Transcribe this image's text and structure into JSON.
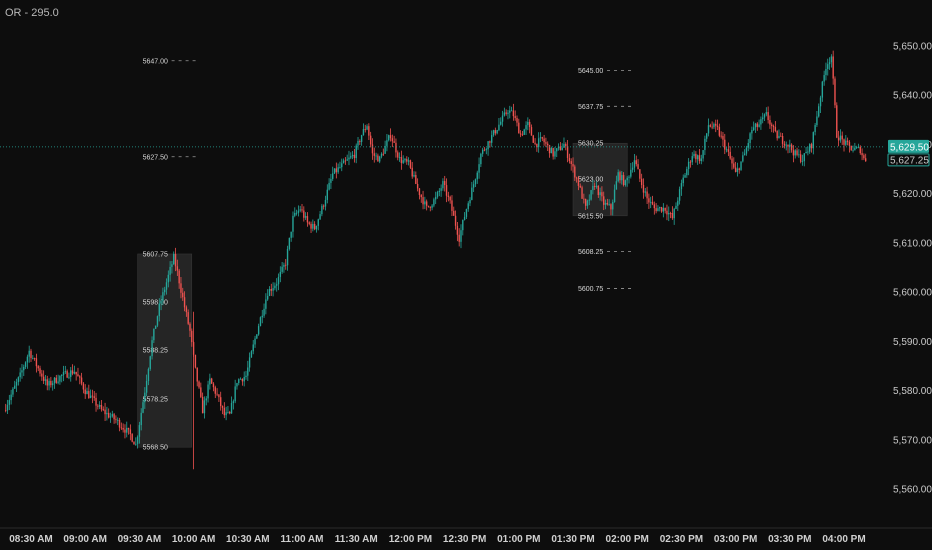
{
  "indicator": {
    "label": "OR - 295.0"
  },
  "chart_data": {
    "type": "candlestick",
    "y_axis": {
      "ylim": [
        5553,
        5657
      ],
      "ticks": [
        "5,560.00",
        "5,570.00",
        "5,580.00",
        "5,590.00",
        "5,600.00",
        "5,610.00",
        "5,620.00",
        "5,630.00",
        "5,640.00",
        "5,650.00"
      ],
      "tick_values": [
        5560,
        5570,
        5580,
        5590,
        5600,
        5610,
        5620,
        5630,
        5640,
        5650
      ]
    },
    "x_axis": {
      "ticks": [
        "08:30 AM",
        "09:00 AM",
        "09:30 AM",
        "10:00 AM",
        "10:30 AM",
        "11:00 AM",
        "11:30 AM",
        "12:00 PM",
        "12:30 PM",
        "01:00 PM",
        "01:30 PM",
        "02:00 PM",
        "02:30 PM",
        "03:00 PM",
        "03:30 PM",
        "04:00 PM"
      ],
      "tick_minutes": [
        510,
        540,
        570,
        600,
        630,
        660,
        690,
        720,
        750,
        780,
        810,
        840,
        870,
        900,
        930,
        960
      ],
      "xlim": [
        495,
        1005
      ]
    },
    "last_price": {
      "label": "5,629.50",
      "value": 5629.5,
      "color": "#26a69a"
    },
    "current_price": {
      "label": "5,627.25",
      "value": 5627.25
    },
    "opening_ranges": [
      {
        "name": "morning",
        "start": 569,
        "end": 599,
        "levels": [
          {
            "label": "5607.75",
            "value": 5607.75
          },
          {
            "label": "5598.00",
            "value": 5598.0
          },
          {
            "label": "5588.25",
            "value": 5588.25
          },
          {
            "label": "5578.25",
            "value": 5578.25
          },
          {
            "label": "5568.50",
            "value": 5568.5
          }
        ],
        "ext_levels": [
          {
            "label": "5647.00",
            "value": 5647.0
          },
          {
            "label": "5627.50",
            "value": 5627.5
          }
        ]
      },
      {
        "name": "afternoon",
        "start": 810,
        "end": 840,
        "levels": [
          {
            "label": "5630.25",
            "value": 5630.25
          },
          {
            "label": "5623.00",
            "value": 5623.0
          },
          {
            "label": "5615.50",
            "value": 5615.5
          }
        ],
        "ext_levels": [
          {
            "label": "5645.00",
            "value": 5645.0
          },
          {
            "label": "5637.75",
            "value": 5637.75
          },
          {
            "label": "5608.25",
            "value": 5608.25
          },
          {
            "label": "5600.75",
            "value": 5600.75
          }
        ]
      }
    ],
    "waypoints": [
      [
        496,
        5576
      ],
      [
        505,
        5583
      ],
      [
        510,
        5588
      ],
      [
        520,
        5581
      ],
      [
        528,
        5583
      ],
      [
        535,
        5584
      ],
      [
        541,
        5580
      ],
      [
        550,
        5576
      ],
      [
        558,
        5574
      ],
      [
        566,
        5571
      ],
      [
        569,
        5569
      ],
      [
        574,
        5580
      ],
      [
        578,
        5590
      ],
      [
        582,
        5597
      ],
      [
        586,
        5602
      ],
      [
        590,
        5607
      ],
      [
        592,
        5604
      ],
      [
        596,
        5597
      ],
      [
        599,
        5592
      ],
      [
        602,
        5584
      ],
      [
        606,
        5576
      ],
      [
        610,
        5582
      ],
      [
        614,
        5579
      ],
      [
        618,
        5575
      ],
      [
        621,
        5575
      ],
      [
        625,
        5582
      ],
      [
        630,
        5583
      ],
      [
        636,
        5592
      ],
      [
        642,
        5600
      ],
      [
        647,
        5602
      ],
      [
        652,
        5606
      ],
      [
        656,
        5615
      ],
      [
        660,
        5617
      ],
      [
        664,
        5614
      ],
      [
        668,
        5613
      ],
      [
        673,
        5618
      ],
      [
        678,
        5624
      ],
      [
        684,
        5626
      ],
      [
        690,
        5628
      ],
      [
        694,
        5632
      ],
      [
        697,
        5634
      ],
      [
        700,
        5628
      ],
      [
        704,
        5627
      ],
      [
        710,
        5632
      ],
      [
        715,
        5627
      ],
      [
        720,
        5626
      ],
      [
        725,
        5621
      ],
      [
        730,
        5617
      ],
      [
        735,
        5619
      ],
      [
        739,
        5622
      ],
      [
        743,
        5618
      ],
      [
        748,
        5611
      ],
      [
        752,
        5617
      ],
      [
        756,
        5622
      ],
      [
        760,
        5628
      ],
      [
        765,
        5631
      ],
      [
        770,
        5634
      ],
      [
        775,
        5637
      ],
      [
        778,
        5636
      ],
      [
        782,
        5632
      ],
      [
        786,
        5634
      ],
      [
        790,
        5630
      ],
      [
        794,
        5631
      ],
      [
        800,
        5628
      ],
      [
        806,
        5630
      ],
      [
        810,
        5626
      ],
      [
        814,
        5622
      ],
      [
        818,
        5617
      ],
      [
        823,
        5622
      ],
      [
        828,
        5618
      ],
      [
        832,
        5617
      ],
      [
        836,
        5624
      ],
      [
        840,
        5622
      ],
      [
        845,
        5627
      ],
      [
        848,
        5623
      ],
      [
        852,
        5619
      ],
      [
        856,
        5617
      ],
      [
        862,
        5617
      ],
      [
        866,
        5615
      ],
      [
        872,
        5623
      ],
      [
        877,
        5628
      ],
      [
        882,
        5627
      ],
      [
        886,
        5634
      ],
      [
        891,
        5633
      ],
      [
        897,
        5628
      ],
      [
        901,
        5624
      ],
      [
        906,
        5628
      ],
      [
        910,
        5633
      ],
      [
        914,
        5634
      ],
      [
        918,
        5636
      ],
      [
        923,
        5632
      ],
      [
        930,
        5630
      ],
      [
        934,
        5628
      ],
      [
        938,
        5627
      ],
      [
        943,
        5630
      ],
      [
        947,
        5638
      ],
      [
        951,
        5646
      ],
      [
        954,
        5648
      ],
      [
        957,
        5632
      ],
      [
        962,
        5630
      ],
      [
        966,
        5629
      ],
      [
        970,
        5629
      ],
      [
        972,
        5627
      ]
    ]
  }
}
